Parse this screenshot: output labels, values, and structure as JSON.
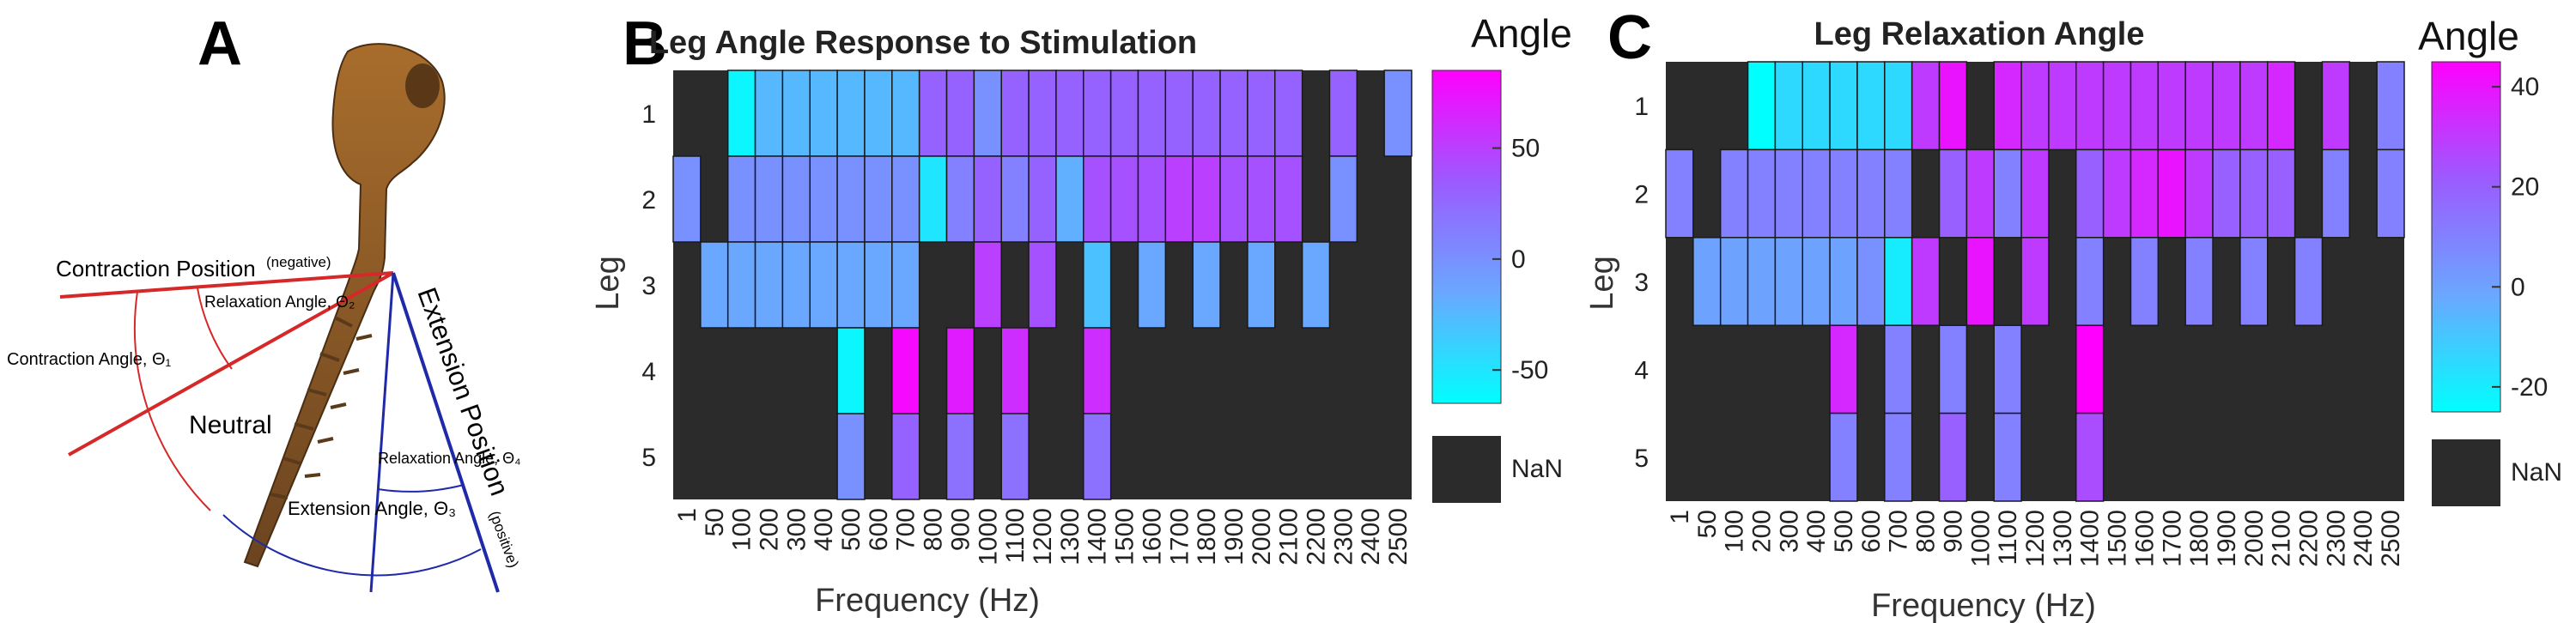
{
  "panel_a": {
    "letter": "A",
    "labels": {
      "contraction_position": "Contraction Position",
      "negative": "(negative)",
      "relaxation_angle_2": "Relaxation Angle, Θ₂",
      "contraction_angle_1": "Contraction Angle, Θ₁",
      "neutral": "Neutral",
      "extension_position": "Extension Position",
      "positive": "(positive)",
      "relaxation_angle_4": "Relaxation Angle, Θ₄",
      "extension_angle_3": "Extension Angle, Θ₃"
    },
    "colors": {
      "contraction": "#d62828",
      "extension": "#1f2aa8",
      "leg": "#8a5a2b"
    }
  },
  "chart_data": [
    {
      "panel": "B",
      "type": "heatmap",
      "title": "Leg Angle Response to Stimulation",
      "xlabel": "Frequency (Hz)",
      "ylabel": "Leg",
      "x": [
        "1",
        "50",
        "100",
        "200",
        "300",
        "400",
        "500",
        "600",
        "700",
        "800",
        "900",
        "1000",
        "1100",
        "1200",
        "1300",
        "1400",
        "1500",
        "1600",
        "1700",
        "1800",
        "1900",
        "2000",
        "2100",
        "2200",
        "2300",
        "2400",
        "2500"
      ],
      "y": [
        "1",
        "2",
        "3",
        "4",
        "5"
      ],
      "values": [
        [
          null,
          null,
          -60,
          -25,
          -25,
          -25,
          -25,
          -25,
          -25,
          30,
          30,
          0,
          30,
          30,
          30,
          30,
          30,
          30,
          30,
          30,
          30,
          30,
          30,
          null,
          30,
          null,
          0
        ],
        [
          0,
          null,
          0,
          0,
          0,
          0,
          0,
          0,
          0,
          -50,
          10,
          30,
          10,
          30,
          -20,
          40,
          40,
          40,
          50,
          50,
          40,
          40,
          40,
          null,
          0,
          null,
          null
        ],
        [
          null,
          -15,
          -15,
          -15,
          -15,
          -15,
          -15,
          -15,
          -15,
          null,
          null,
          50,
          null,
          40,
          null,
          -30,
          null,
          -15,
          null,
          -15,
          null,
          -15,
          null,
          -15,
          null,
          null,
          null
        ],
        [
          null,
          null,
          null,
          null,
          null,
          null,
          -60,
          null,
          80,
          null,
          70,
          null,
          60,
          null,
          null,
          60,
          null,
          null,
          null,
          null,
          null,
          null,
          null,
          null,
          null,
          null,
          null
        ],
        [
          null,
          null,
          null,
          null,
          null,
          null,
          0,
          null,
          30,
          null,
          20,
          null,
          20,
          null,
          null,
          20,
          null,
          null,
          null,
          null,
          null,
          null,
          null,
          null,
          null,
          null,
          null
        ]
      ],
      "colorbar": {
        "title": "Angle",
        "vmin": -65,
        "vmax": 85,
        "ticks": [
          50,
          0,
          -50
        ],
        "tick_labels": [
          "50",
          "0",
          "-50"
        ],
        "nan_label": "NaN"
      }
    },
    {
      "panel": "C",
      "type": "heatmap",
      "title": "Leg Relaxation Angle",
      "xlabel": "Frequency (Hz)",
      "ylabel": "Leg",
      "x": [
        "1",
        "50",
        "100",
        "200",
        "300",
        "400",
        "500",
        "600",
        "700",
        "800",
        "900",
        "1000",
        "1100",
        "1200",
        "1300",
        "1400",
        "1500",
        "1600",
        "1700",
        "1800",
        "1900",
        "2000",
        "2100",
        "2200",
        "2300",
        "2400",
        "2500"
      ],
      "y": [
        "1",
        "2",
        "3",
        "4",
        "5"
      ],
      "values": [
        [
          null,
          null,
          null,
          -25,
          -15,
          -15,
          -15,
          -15,
          -15,
          30,
          40,
          null,
          35,
          30,
          30,
          30,
          30,
          30,
          30,
          30,
          30,
          30,
          35,
          null,
          30,
          null,
          10
        ],
        [
          10,
          null,
          10,
          10,
          10,
          10,
          10,
          10,
          10,
          null,
          20,
          30,
          10,
          30,
          null,
          20,
          30,
          35,
          40,
          30,
          20,
          20,
          20,
          null,
          10,
          null,
          10
        ],
        [
          null,
          0,
          0,
          0,
          0,
          0,
          0,
          5,
          -20,
          30,
          null,
          40,
          null,
          30,
          null,
          10,
          null,
          10,
          null,
          10,
          null,
          10,
          null,
          10,
          null,
          null,
          null
        ],
        [
          null,
          null,
          null,
          null,
          null,
          null,
          35,
          null,
          10,
          null,
          10,
          null,
          10,
          null,
          null,
          45,
          null,
          null,
          null,
          null,
          null,
          null,
          null,
          null,
          null,
          null,
          null
        ],
        [
          null,
          null,
          null,
          null,
          null,
          null,
          10,
          null,
          10,
          null,
          20,
          null,
          10,
          null,
          null,
          25,
          null,
          null,
          null,
          null,
          null,
          null,
          null,
          null,
          null,
          null,
          null
        ]
      ],
      "colorbar": {
        "title": "Angle",
        "vmin": -25,
        "vmax": 45,
        "ticks": [
          40,
          20,
          0,
          -20
        ],
        "tick_labels": [
          "40",
          "20",
          "0",
          "-20"
        ],
        "nan_label": "NaN"
      }
    }
  ]
}
